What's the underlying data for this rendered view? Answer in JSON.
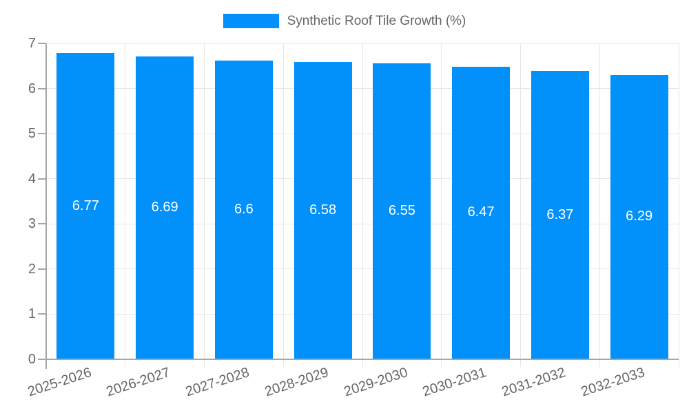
{
  "legend": {
    "label": "Synthetic Roof Tile Growth (%)"
  },
  "chart_data": {
    "type": "bar",
    "title": "",
    "series_name": "Synthetic Roof Tile Growth (%)",
    "categories": [
      "2025-2026",
      "2026-2027",
      "2027-2028",
      "2028-2029",
      "2029-2030",
      "2030-2031",
      "2031-2032",
      "2032-2033"
    ],
    "values": [
      6.77,
      6.69,
      6.6,
      6.58,
      6.55,
      6.47,
      6.37,
      6.29
    ],
    "value_labels": [
      "6.77",
      "6.69",
      "6.6",
      "6.58",
      "6.55",
      "6.47",
      "6.37",
      "6.29"
    ],
    "ylim": [
      0,
      7
    ],
    "y_ticks": [
      0,
      1,
      2,
      3,
      4,
      5,
      6,
      7
    ],
    "grid": true,
    "legend_position": "top",
    "bar_color": "#0291fa",
    "value_label_color": "#ffffff",
    "axis_text_color": "#666666",
    "grid_color": "#e6e6e6",
    "axis_line_color": "#a6a6a6"
  }
}
